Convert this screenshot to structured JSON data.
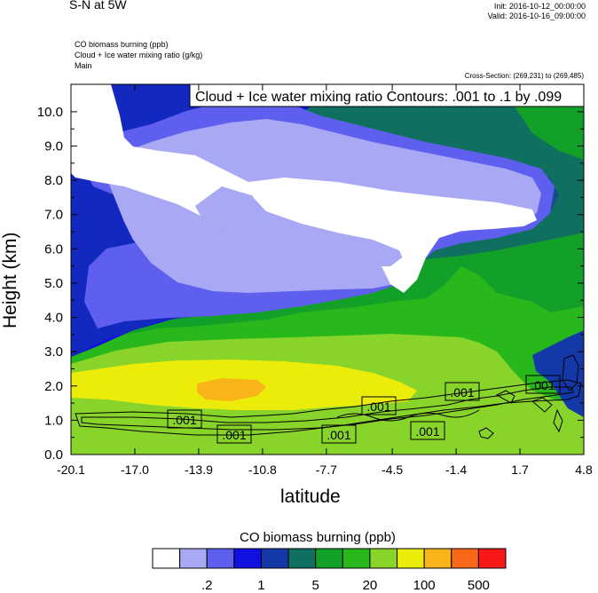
{
  "header": {
    "title": "S-N at 5W",
    "init": "Init: 2016-10-12_00:00:00",
    "valid": "Valid: 2016-10-16_09:00:00",
    "field1": "CO biomass burning   (ppb)",
    "field2": "Cloud + Ice water mixing ratio   (g/kg)",
    "field3": "Main",
    "cross_section": "Cross-Section: (269,231) to (269,485)"
  },
  "chart_data": {
    "type": "heatmap",
    "xlabel": "latitude",
    "ylabel": "Height (km)",
    "x_ticks": [
      "-20.1",
      "-17.0",
      "-13.9",
      "-10.8",
      "-7.7",
      "-4.5",
      "-1.4",
      "1.7",
      "4.8"
    ],
    "y_ticks": [
      "0.0",
      "1.0",
      "2.0",
      "3.0",
      "4.0",
      "5.0",
      "6.0",
      "7.0",
      "8.0",
      "9.0",
      "10.0"
    ],
    "xlim": [
      -20.1,
      4.8
    ],
    "ylim": [
      0.0,
      10.8
    ],
    "contour_title": "Cloud + Ice water mixing ratio Contours: .001 to .1 by .099",
    "contour_labels": [
      ".001",
      ".001",
      ".001",
      ".001",
      ".001",
      ".001",
      ".001"
    ],
    "colorbar": {
      "title": "CO biomass burning  (ppb)",
      "labels": [
        ".2",
        "1",
        "5",
        "20",
        "100",
        "500"
      ],
      "colors": [
        "#ffffff",
        "#a8a8f5",
        "#5f5fef",
        "#1010e0",
        "#1438a8",
        "#107060",
        "#12a028",
        "#28b81c",
        "#88d42a",
        "#ecec0a",
        "#f8b418",
        "#f86818",
        "#f81818"
      ]
    },
    "regions": [
      {
        "level": 5,
        "name": "dark-teal background"
      },
      {
        "level": 0,
        "name": "upper white plume"
      },
      {
        "level": 9,
        "name": "yellow low layer"
      },
      {
        "level": 10,
        "name": "orange core"
      }
    ],
    "colors": {
      "white": "#ffffff",
      "lav": "#a8a8f5",
      "blue1": "#5f5fef",
      "blue2": "#1010e0",
      "navy": "#1438a8",
      "teal": "#107060",
      "green": "#12a028",
      "green2": "#28b81c",
      "lime": "#88d42a",
      "yellow": "#ecec0a",
      "orange": "#f8b418",
      "red1": "#f86818",
      "red2": "#f81818"
    }
  }
}
